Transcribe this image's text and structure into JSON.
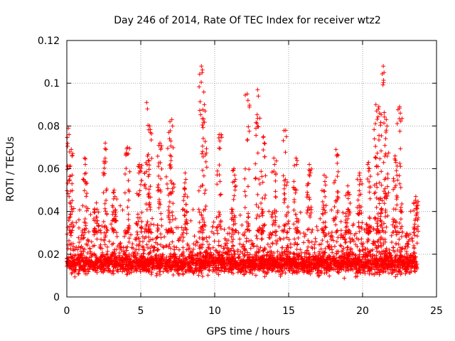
{
  "chart_data": {
    "type": "scatter",
    "title": "Day 246 of 2014, Rate Of TEC Index for receiver wtz2",
    "xlabel": "GPS time / hours",
    "ylabel": "ROTI / TECUs",
    "xlim": [
      0,
      25
    ],
    "ylim": [
      0,
      0.12
    ],
    "x_ticks": [
      0,
      5,
      10,
      15,
      20,
      25
    ],
    "x_tick_labels": [
      "0",
      "5",
      "10",
      "15",
      "20",
      "25"
    ],
    "y_ticks": [
      0,
      0.02,
      0.04,
      0.06,
      0.08,
      0.1,
      0.12
    ],
    "y_tick_labels": [
      "0",
      "0.02",
      "0.04",
      "0.06",
      "0.08",
      "0.1",
      "0.12"
    ],
    "grid": true,
    "marker": "+",
    "color": "#ff0000",
    "x_range_of_data": [
      0,
      23.7
    ],
    "typical_y_band": [
      0.007,
      0.03
    ],
    "bursts": [
      {
        "x": 0.1,
        "peak": 0.079
      },
      {
        "x": 0.3,
        "peak": 0.069
      },
      {
        "x": 1.2,
        "peak": 0.065
      },
      {
        "x": 2.0,
        "peak": 0.044
      },
      {
        "x": 2.6,
        "peak": 0.072
      },
      {
        "x": 3.2,
        "peak": 0.05
      },
      {
        "x": 4.1,
        "peak": 0.07
      },
      {
        "x": 4.9,
        "peak": 0.062
      },
      {
        "x": 5.4,
        "peak": 0.091
      },
      {
        "x": 5.6,
        "peak": 0.08
      },
      {
        "x": 6.3,
        "peak": 0.072
      },
      {
        "x": 6.9,
        "peak": 0.077
      },
      {
        "x": 7.1,
        "peak": 0.083
      },
      {
        "x": 8.0,
        "peak": 0.058
      },
      {
        "x": 9.1,
        "peak": 0.108
      },
      {
        "x": 9.3,
        "peak": 0.09
      },
      {
        "x": 10.3,
        "peak": 0.076
      },
      {
        "x": 11.3,
        "peak": 0.06
      },
      {
        "x": 12.2,
        "peak": 0.095
      },
      {
        "x": 12.9,
        "peak": 0.097
      },
      {
        "x": 13.3,
        "peak": 0.075
      },
      {
        "x": 14.0,
        "peak": 0.065
      },
      {
        "x": 14.8,
        "peak": 0.078
      },
      {
        "x": 15.5,
        "peak": 0.065
      },
      {
        "x": 16.4,
        "peak": 0.062
      },
      {
        "x": 17.4,
        "peak": 0.057
      },
      {
        "x": 18.2,
        "peak": 0.069
      },
      {
        "x": 19.0,
        "peak": 0.052
      },
      {
        "x": 19.8,
        "peak": 0.058
      },
      {
        "x": 20.4,
        "peak": 0.063
      },
      {
        "x": 20.9,
        "peak": 0.09
      },
      {
        "x": 21.1,
        "peak": 0.089
      },
      {
        "x": 21.4,
        "peak": 0.108
      },
      {
        "x": 21.6,
        "peak": 0.083
      },
      {
        "x": 22.2,
        "peak": 0.066
      },
      {
        "x": 22.5,
        "peak": 0.089
      },
      {
        "x": 23.6,
        "peak": 0.047
      }
    ]
  }
}
